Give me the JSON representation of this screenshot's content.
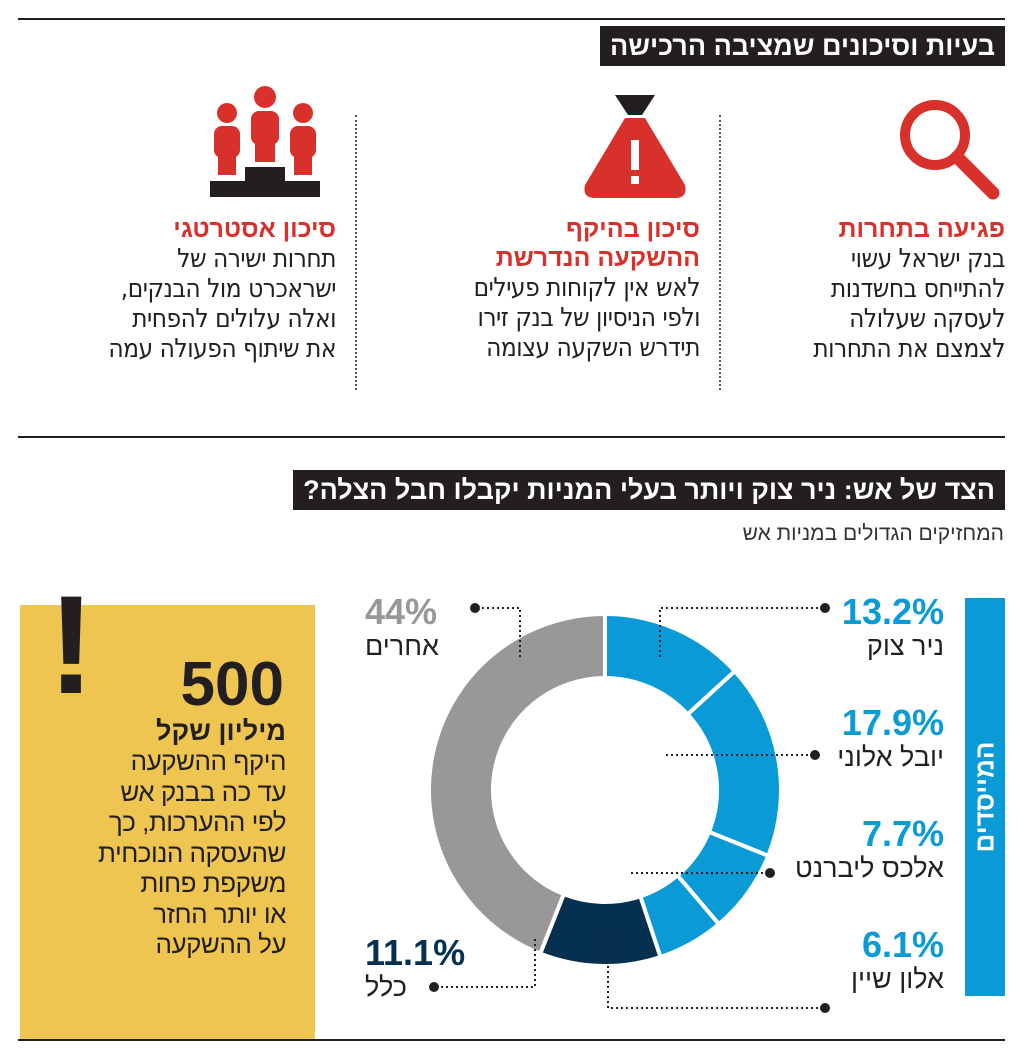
{
  "section1": {
    "title": "בעיות וסיכונים שמציבה הרכישה",
    "columns": [
      {
        "icon": "magnifier-icon",
        "title": "פגיעה בתחרות",
        "body": [
          "בנק ישראל עשוי",
          "להתייחס בחשדנות",
          "לעסקה שעלולה",
          "לצמצם את התחרות"
        ]
      },
      {
        "icon": "money-bag-warning-icon",
        "title": [
          "סיכון בהיקף",
          "ההשקעה הנדרשת"
        ],
        "body": [
          "לאש אין לקוחות פעילים",
          "ולפי הניסיון של בנק זירו",
          "תידרש השקעה עצומה"
        ]
      },
      {
        "icon": "people-podium-icon",
        "title": "סיכון אסטרטגי",
        "body": [
          "תחרות ישירה של",
          "ישראכרט מול הבנקים,",
          "ואלה עלולים להפחית",
          "את שיתוף הפעולה עמה"
        ]
      }
    ]
  },
  "section2": {
    "title": "הצד של אש: ניר צוק ויותר בעלי המניות יקבלו חבל הצלה?",
    "subtitle": "המחזיקים הגדולים במניות אש",
    "founders_label": "המייסדים",
    "callout": {
      "number": "500",
      "unit": "מיליון שקל",
      "body": [
        "היקף ההשקעה",
        "עד כה בבנק אש",
        "לפי ההערכות, כך",
        "שהעסקה הנוכחית",
        "משקפת פחות",
        "או יותר החזר",
        "על ההשקעה"
      ]
    }
  },
  "colors": {
    "red": "#d8312c",
    "blue": "#0a9ad6",
    "navy": "#05304f",
    "gray": "#999797",
    "yellow": "#eec551"
  },
  "chart_data": {
    "type": "pie",
    "donut": true,
    "title": "המחזיקים הגדולים במניות אש",
    "slices": [
      {
        "name": "ניר צוק",
        "value": 13.2,
        "label": "13.2%",
        "color": "#0a9ad6",
        "group": "המייסדים"
      },
      {
        "name": "יובל אלוני",
        "value": 17.9,
        "label": "17.9%",
        "color": "#0a9ad6",
        "group": "המייסדים"
      },
      {
        "name": "אלכס ליברנט",
        "value": 7.7,
        "label": "7.7%",
        "color": "#0a9ad6",
        "group": "המייסדים"
      },
      {
        "name": "אלון שיין",
        "value": 6.1,
        "label": "6.1%",
        "color": "#0a9ad6",
        "group": "המייסדים"
      },
      {
        "name": "כלל",
        "value": 11.1,
        "label": "11.1%",
        "color": "#05304f"
      },
      {
        "name": "אחרים",
        "value": 44,
        "label": "44%",
        "color": "#999797"
      }
    ]
  }
}
